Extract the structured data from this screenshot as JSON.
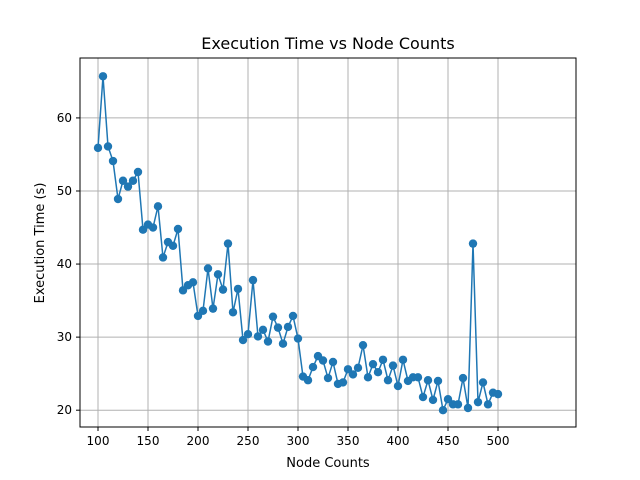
{
  "chart_data": {
    "type": "line",
    "title": "Execution Time vs Node Counts",
    "xlabel": "Node Counts",
    "ylabel": "Execution Time (s)",
    "xlim": [
      82,
      578
    ],
    "ylim": [
      17.7,
      68.2
    ],
    "xticks": [
      100,
      150,
      200,
      250,
      300,
      350,
      400,
      450,
      500
    ],
    "yticks": [
      20,
      30,
      40,
      50,
      60
    ],
    "grid": true,
    "color": "#1f77b4",
    "marker": "circle",
    "series": [
      {
        "x": [
          100,
          105,
          110,
          115,
          120,
          125,
          130,
          135,
          140,
          145,
          150,
          155,
          160,
          165,
          170,
          175,
          180,
          185,
          190,
          195,
          200,
          205,
          210,
          215,
          220,
          225,
          230,
          235,
          240,
          245,
          250,
          255,
          260,
          265,
          270,
          275,
          280,
          285,
          290,
          295,
          300,
          305,
          310,
          315,
          320,
          325,
          330,
          335,
          340,
          345,
          350,
          355,
          360,
          365,
          370,
          375,
          380,
          385,
          390,
          395,
          400,
          405,
          410,
          415,
          420,
          425,
          430,
          435,
          440,
          445,
          450,
          455,
          460,
          465,
          470,
          475,
          480,
          485,
          490,
          495,
          500
        ],
        "y": [
          55.9,
          65.7,
          56.1,
          54.1,
          48.9,
          51.4,
          50.6,
          51.4,
          52.6,
          44.7,
          45.4,
          45.0,
          47.9,
          40.9,
          43.0,
          42.5,
          44.8,
          36.4,
          37.1,
          37.5,
          32.9,
          33.6,
          39.4,
          33.9,
          38.6,
          36.5,
          42.8,
          33.4,
          36.6,
          29.6,
          30.4,
          37.8,
          30.1,
          31.0,
          29.4,
          32.8,
          31.3,
          29.1,
          31.4,
          32.9,
          29.8,
          24.6,
          24.1,
          25.9,
          27.4,
          26.8,
          24.4,
          26.6,
          23.6,
          23.8,
          25.6,
          24.9,
          25.8,
          28.9,
          24.5,
          26.3,
          25.2,
          26.9,
          24.1,
          26.1,
          23.3,
          26.9,
          24.0,
          24.5,
          24.5,
          21.8,
          24.1,
          21.4,
          24.0,
          20.0,
          21.5,
          20.8,
          20.8,
          24.4,
          20.3,
          42.8,
          21.1,
          23.8,
          20.8,
          22.4,
          22.2
        ]
      }
    ]
  }
}
